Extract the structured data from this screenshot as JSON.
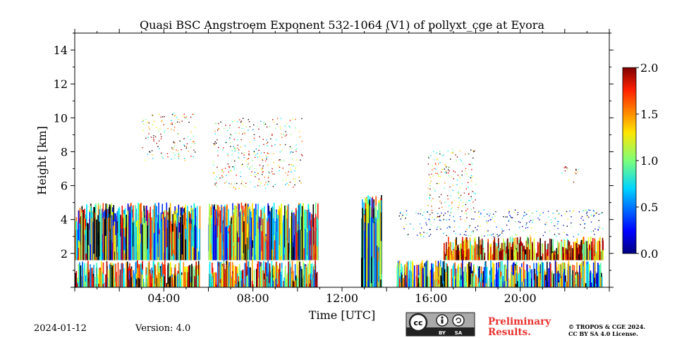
{
  "chart_data": {
    "type": "heatmap",
    "title": "Quasi BSC Angstroem Exponent 532-1064 (V1) of pollyxt_cge at Evora",
    "xlabel": "Time [UTC]",
    "ylabel": "Height [km]",
    "xlim_hours": [
      0,
      24
    ],
    "ylim_km": [
      0,
      15
    ],
    "x_ticks": [
      {
        "hour": 4,
        "label": "04:00"
      },
      {
        "hour": 8,
        "label": "08:00"
      },
      {
        "hour": 12,
        "label": "12:00"
      },
      {
        "hour": 16,
        "label": "16:00"
      },
      {
        "hour": 20,
        "label": "20:00"
      }
    ],
    "y_ticks": [
      {
        "value": 2,
        "label": "2"
      },
      {
        "value": 4,
        "label": "4"
      },
      {
        "value": 6,
        "label": "6"
      },
      {
        "value": 8,
        "label": "8"
      },
      {
        "value": 10,
        "label": "10"
      },
      {
        "value": 12,
        "label": "12"
      },
      {
        "value": 14,
        "label": "14"
      }
    ],
    "colorbar": {
      "min": 0.0,
      "max": 2.0,
      "ticks": [
        "0.0",
        "0.5",
        "1.0",
        "1.5",
        "2.0"
      ],
      "colormap": "jet"
    },
    "data_gaps_hours": [
      [
        5.65,
        6.0
      ],
      [
        10.9,
        12.85
      ],
      [
        13.75,
        14.45
      ]
    ],
    "features": [
      {
        "t0": 0.0,
        "t1": 5.6,
        "h0": 0.0,
        "h1": 1.6,
        "value": 1.2
      },
      {
        "t0": 0.0,
        "t1": 5.6,
        "h0": 1.6,
        "h1": 5.0,
        "value": 1.0
      },
      {
        "t0": 6.0,
        "t1": 10.9,
        "h0": 0.0,
        "h1": 1.6,
        "value": 1.2
      },
      {
        "t0": 6.0,
        "t1": 10.9,
        "h0": 1.6,
        "h1": 5.0,
        "value": 1.0
      },
      {
        "t0": 3.0,
        "t1": 5.4,
        "h0": 7.5,
        "h1": 10.3,
        "value": 1.4
      },
      {
        "t0": 6.2,
        "t1": 10.2,
        "h0": 5.8,
        "h1": 10.0,
        "value": 1.3
      },
      {
        "t0": 12.85,
        "t1": 13.75,
        "h0": 0.0,
        "h1": 5.5,
        "value": 1.0
      },
      {
        "t0": 14.45,
        "t1": 23.7,
        "h0": 0.0,
        "h1": 1.6,
        "value": 0.9
      },
      {
        "t0": 16.5,
        "t1": 23.7,
        "h0": 1.6,
        "h1": 3.0,
        "value": 1.6
      },
      {
        "t0": 14.45,
        "t1": 23.7,
        "h0": 3.0,
        "h1": 4.6,
        "value": 0.6
      },
      {
        "t0": 15.8,
        "t1": 18.0,
        "h0": 4.0,
        "h1": 8.2,
        "value": 1.4
      },
      {
        "t0": 21.8,
        "t1": 22.6,
        "h0": 6.2,
        "h1": 7.2,
        "value": 1.5
      }
    ]
  },
  "footer": {
    "date": "2024-01-12",
    "version": "Version: 4.0",
    "preliminary_line1": "Preliminary",
    "preliminary_line2": "Results.",
    "copyright_line1": "© TROPOS & CGE 2024.",
    "copyright_line2": "CC BY SA 4.0 License.",
    "license_badge_by": "BY",
    "license_badge_sa": "SA"
  },
  "colors": {
    "axis": "#000000",
    "preliminary": "#e8322f",
    "badge_bg": "#aaaaaa",
    "badge_dark": "#222222"
  }
}
